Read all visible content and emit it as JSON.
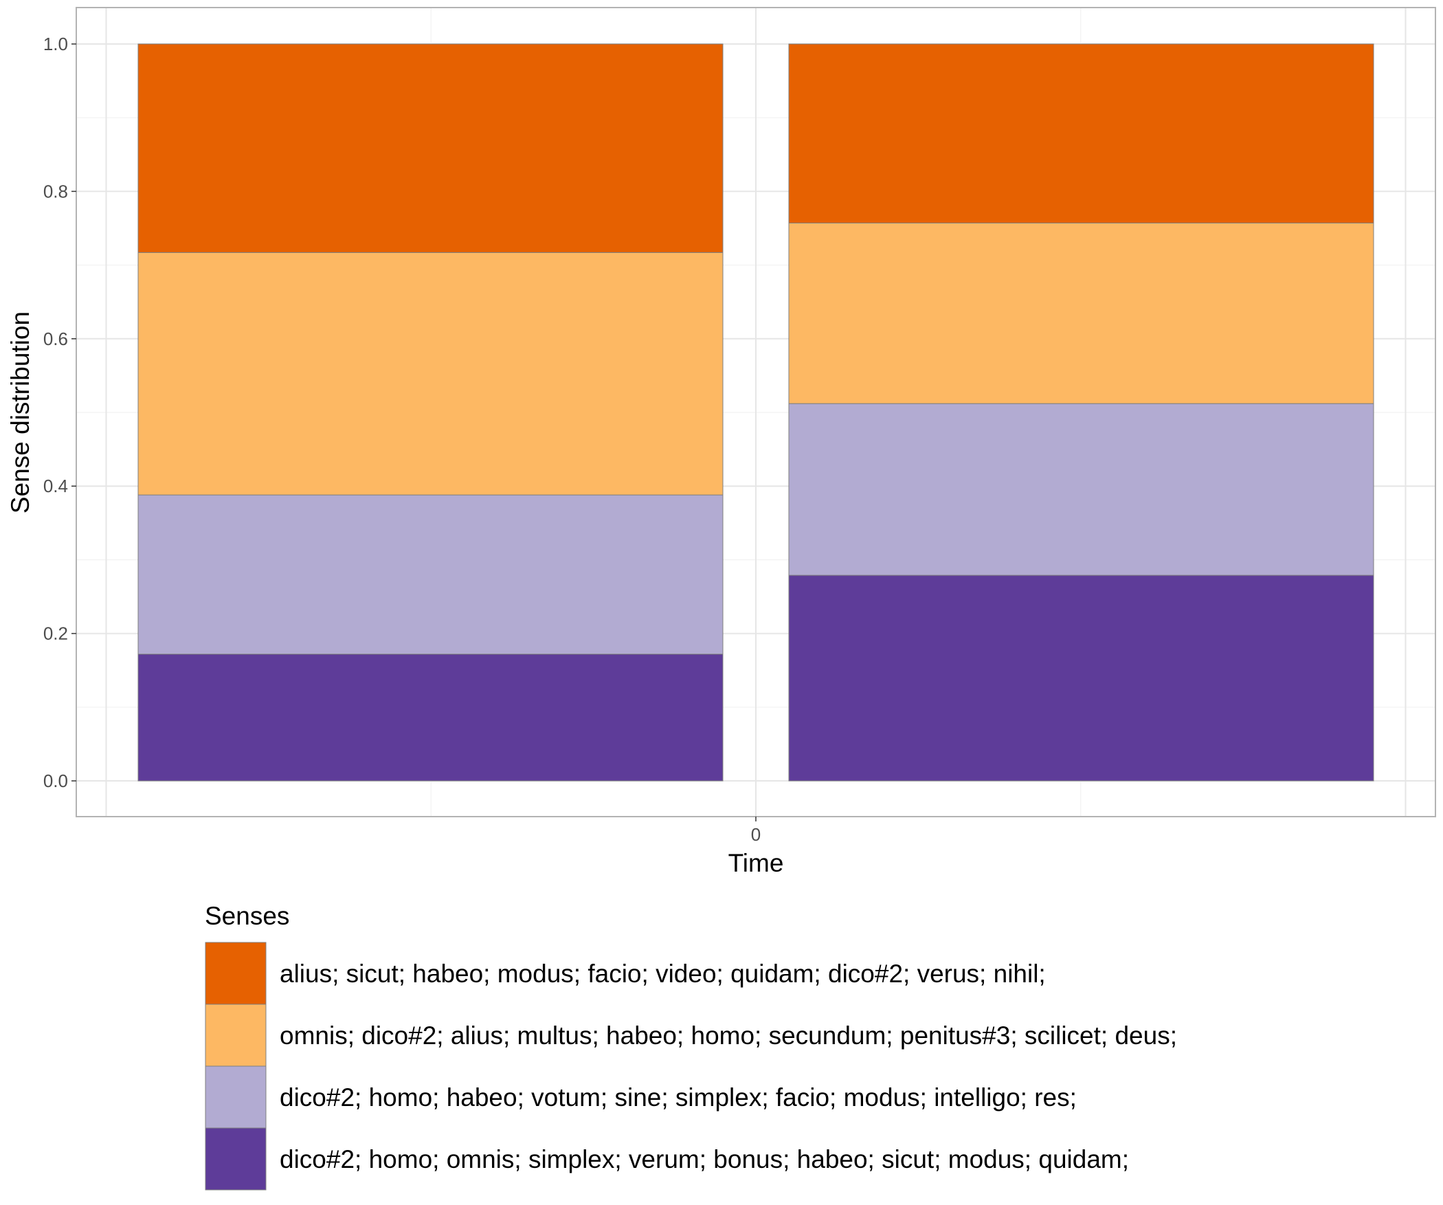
{
  "chart_data": {
    "type": "bar",
    "stacked": true,
    "categories": [
      "",
      ""
    ],
    "series": [
      {
        "name": "dico#2; homo; omnis; simplex; verum; bonus; habeo; sicut; modus; quidam;",
        "color": "#5e3c99",
        "values": [
          0.172,
          0.279
        ]
      },
      {
        "name": "dico#2; homo; habeo; votum; sine; simplex; facio; modus; intelligo; res;",
        "color": "#b2abd2",
        "values": [
          0.216,
          0.233
        ]
      },
      {
        "name": "omnis; dico#2; alius; multus; habeo; homo; secundum; penitus#3; scilicet; deus;",
        "color": "#fdb863",
        "values": [
          0.329,
          0.245
        ]
      },
      {
        "name": "alius; sicut; habeo; modus; facio; video; quidam; dico#2; verus; nihil;",
        "color": "#e66101",
        "values": [
          0.283,
          0.243
        ]
      }
    ],
    "xlabel": "Time",
    "ylabel": "Sense distribution",
    "x_ticks": [
      "0"
    ],
    "y_ticks": [
      "0.0",
      "0.2",
      "0.4",
      "0.6",
      "0.8",
      "1.0"
    ],
    "ylim": [
      0,
      1
    ],
    "grid": true,
    "legend": {
      "title": "Senses",
      "placement": "bottom",
      "order": [
        "alius; sicut; habeo; modus; facio; video; quidam; dico#2; verus; nihil;",
        "omnis; dico#2; alius; multus; habeo; homo; secundum; penitus#3; scilicet; deus;",
        "dico#2; homo; habeo; votum; sine; simplex; facio; modus; intelligo; res;",
        "dico#2; homo; omnis; simplex; verum; bonus; habeo; sicut; modus; quidam;"
      ]
    }
  }
}
